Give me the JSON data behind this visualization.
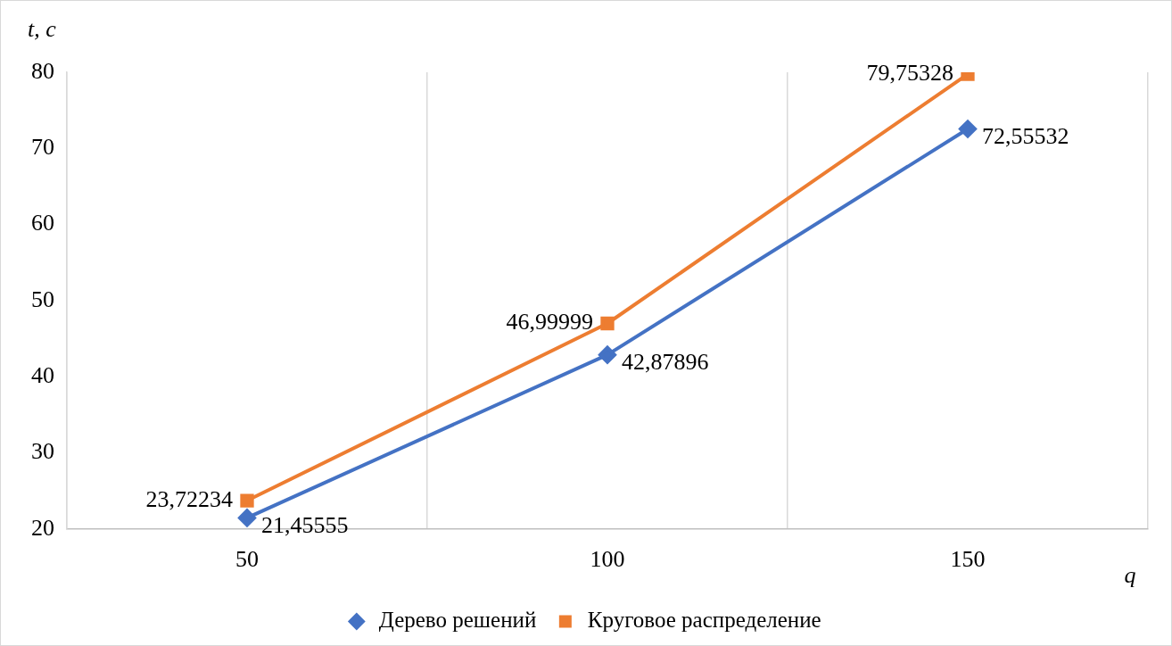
{
  "chart_data": {
    "type": "line",
    "xlabel": "q",
    "ylabel": "t, c",
    "categories": [
      "50",
      "100",
      "150"
    ],
    "series": [
      {
        "name": "Дерево решений",
        "color": "#4472c4",
        "marker": "diamond",
        "values": [
          21.45555,
          42.87896,
          72.55532
        ],
        "value_labels": [
          "21,45555",
          "42,87896",
          "72,55532"
        ]
      },
      {
        "name": "Круговое распределение",
        "color": "#ed7d31",
        "marker": "square",
        "values": [
          23.72234,
          46.99999,
          79.75328
        ],
        "value_labels": [
          "23,72234",
          "46,99999",
          "79,75328"
        ]
      }
    ],
    "ylim": [
      20,
      80
    ],
    "yticks": [
      20,
      30,
      40,
      50,
      60,
      70,
      80
    ],
    "grid": "x",
    "legend": "bottom",
    "line_style": "solid"
  }
}
